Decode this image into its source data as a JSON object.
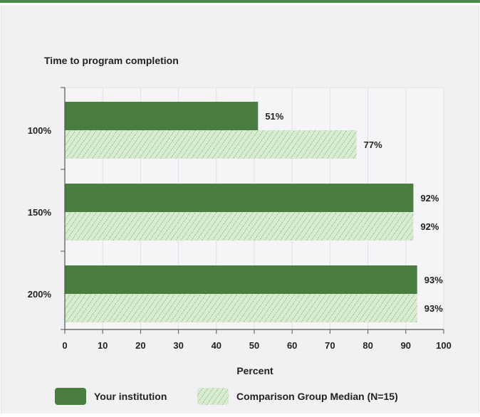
{
  "colors": {
    "institution": "#4a7e41",
    "comparison_fill": "#d8ecd2",
    "comparison_hatch": "#6f9e68",
    "accent_bar": "#4e8a47"
  },
  "chart_data": {
    "type": "bar",
    "orientation": "horizontal",
    "title": "Time to program completion",
    "xlabel": "Percent",
    "ylabel": "",
    "xlim": [
      0,
      100
    ],
    "x_ticks": [
      "0",
      "10",
      "20",
      "30",
      "40",
      "50",
      "60",
      "70",
      "80",
      "90",
      "100"
    ],
    "categories": [
      "100%",
      "150%",
      "200%"
    ],
    "grid": true,
    "legend_position": "bottom",
    "series": [
      {
        "name": "Your institution",
        "values": [
          51,
          92,
          93
        ],
        "labels": [
          "51%",
          "92%",
          "93%"
        ],
        "pattern": "solid"
      },
      {
        "name": "Comparison Group Median (N=15)",
        "values": [
          77,
          92,
          93
        ],
        "labels": [
          "77%",
          "92%",
          "93%"
        ],
        "pattern": "hatched"
      }
    ]
  }
}
